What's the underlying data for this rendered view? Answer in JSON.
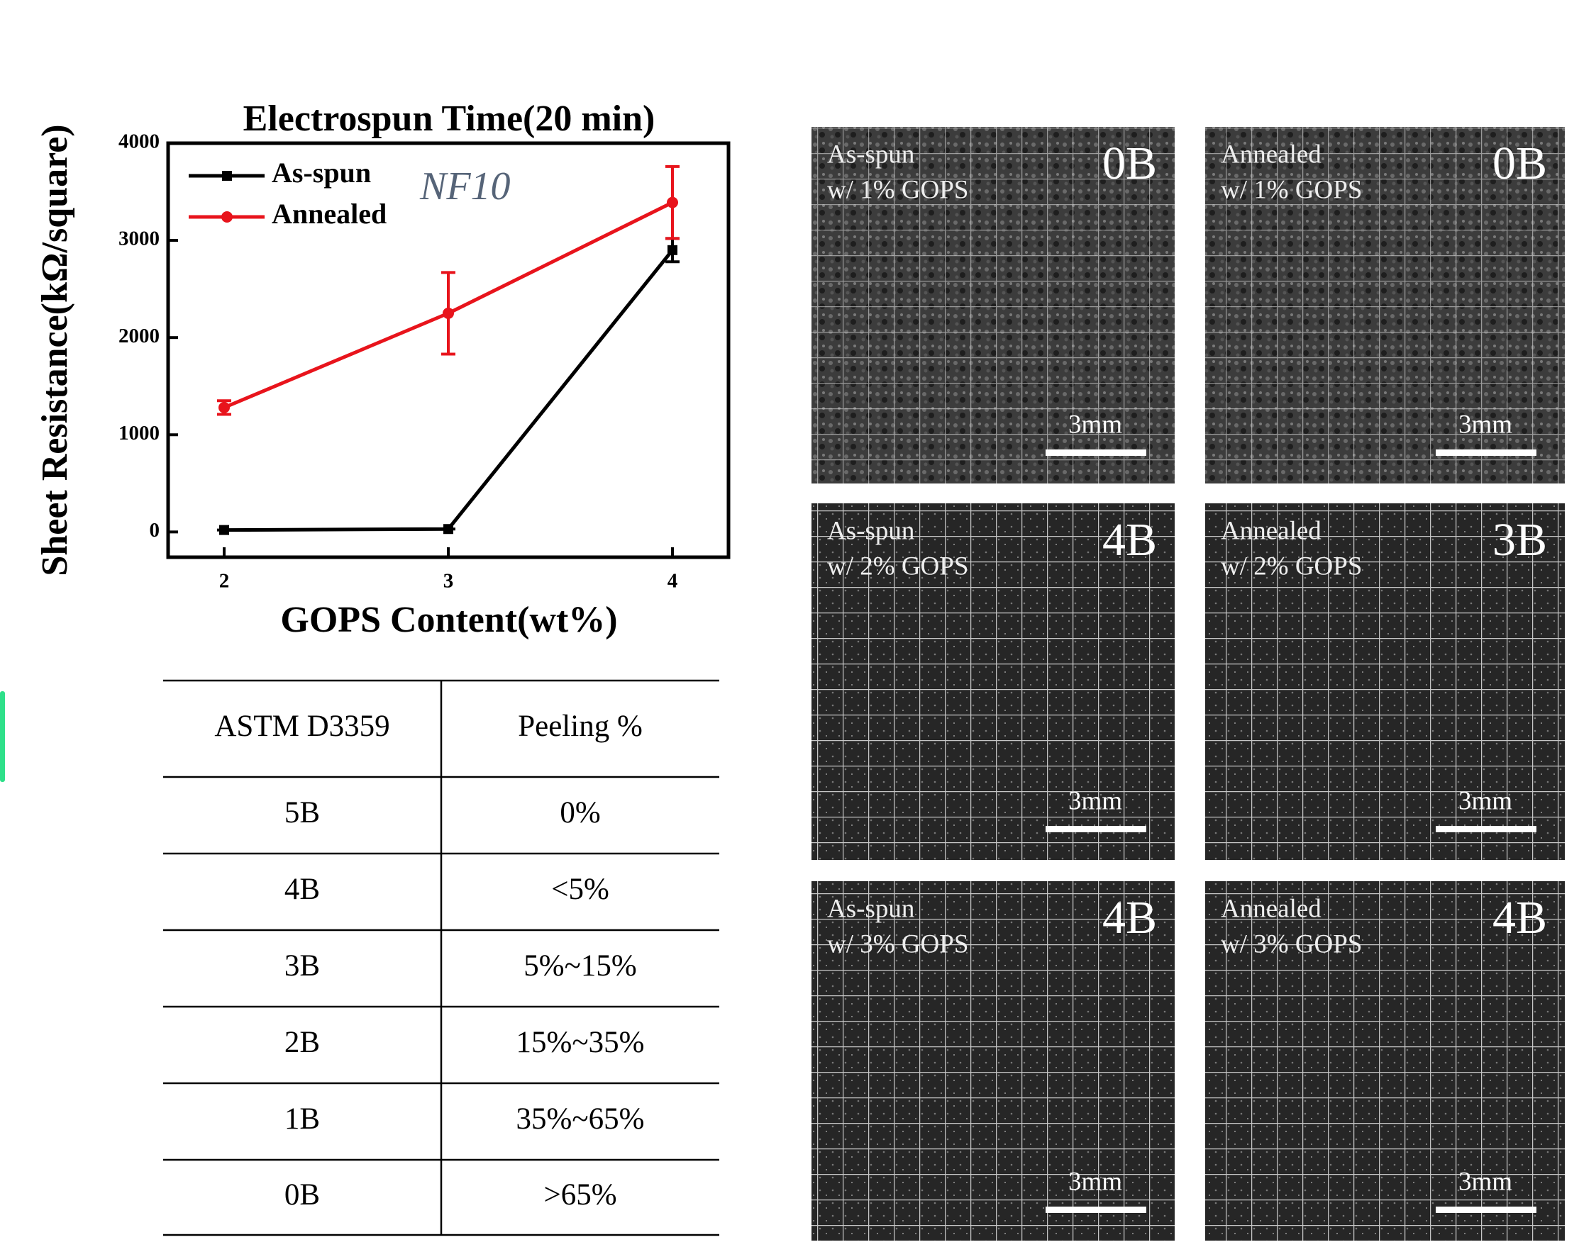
{
  "chart_data": {
    "type": "line",
    "title": "Electrospun Time(20 min)",
    "x_label": "GOPS Content(wt%)",
    "y_label": "Sheet Resistance(kΩ/square)",
    "annotation": "NF10",
    "x": [
      2,
      3,
      4
    ],
    "xlim": [
      1.75,
      4.25
    ],
    "xticks": [
      2,
      3,
      4
    ],
    "ylim": [
      -260,
      4000
    ],
    "yticks": [
      0,
      1000,
      2000,
      3000,
      4000
    ],
    "legend": "upper left",
    "series": [
      {
        "name": "As-spun",
        "color": "#000000",
        "marker": "square",
        "values": [
          20,
          30,
          2900
        ],
        "errors": [
          0,
          0,
          120
        ]
      },
      {
        "name": "Annealed",
        "color": "#e8141c",
        "marker": "circle",
        "values": [
          1280,
          2250,
          3390
        ],
        "errors": [
          70,
          420,
          370
        ]
      }
    ]
  },
  "table": {
    "header": [
      "ASTM D3359",
      "Peeling %"
    ],
    "rows": [
      [
        "5B",
        "0%"
      ],
      [
        "4B",
        "<5%"
      ],
      [
        "3B",
        "5%~15%"
      ],
      [
        "2B",
        "15%~35%"
      ],
      [
        "1B",
        "35%~65%"
      ],
      [
        "0B",
        ">65%"
      ]
    ]
  },
  "panels": [
    {
      "lines": [
        "As-spun",
        "w/ 1%  GOPS"
      ],
      "grade": "0B",
      "scale": "3mm"
    },
    {
      "lines": [
        "Annealed",
        "w/ 1%  GOPS"
      ],
      "grade": "0B",
      "scale": "3mm"
    },
    {
      "lines": [
        "As-spun",
        "w/ 2%  GOPS"
      ],
      "grade": "4B",
      "scale": "3mm"
    },
    {
      "lines": [
        "Annealed",
        "w/ 2%  GOPS"
      ],
      "grade": "3B",
      "scale": "3mm"
    },
    {
      "lines": [
        "As-spun",
        "w/ 3%  GOPS"
      ],
      "grade": "4B",
      "scale": "3mm"
    },
    {
      "lines": [
        "Annealed",
        "w/ 3%  GOPS"
      ],
      "grade": "4B",
      "scale": "3mm"
    }
  ]
}
